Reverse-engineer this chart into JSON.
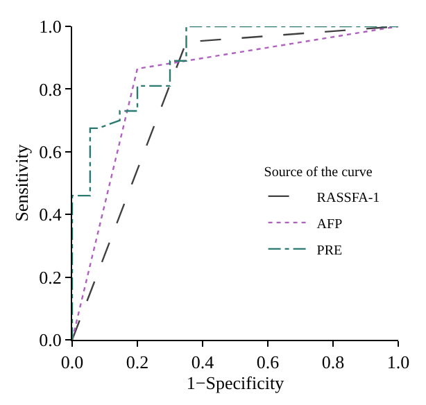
{
  "chart_data": {
    "type": "line",
    "xlabel": "1−Specificity",
    "ylabel": "Sensitivity",
    "legend_title": "Source of the curve",
    "legend": "right",
    "marker": "none",
    "xlim": [
      0,
      1
    ],
    "ylim": [
      0,
      1
    ],
    "xticks": [
      {
        "value": 0,
        "label": "0.0"
      },
      0.2,
      0.4,
      0.6,
      0.8,
      {
        "value": 1,
        "label": "1.0"
      }
    ],
    "yticks": [
      {
        "value": 0,
        "label": "0.0"
      },
      0.2,
      0.4,
      0.6,
      0.8,
      {
        "value": 1,
        "label": "1.0"
      }
    ],
    "series": [
      {
        "name": "RASSFA-1",
        "color": "#404040",
        "line_style": "longdash",
        "x": [
          0,
          0.35,
          1
        ],
        "values": [
          0,
          0.95,
          1
        ]
      },
      {
        "name": "AFP",
        "color": "#b060c0",
        "line_style": "dotted",
        "x": [
          0,
          0.2,
          0.35,
          1
        ],
        "values": [
          0,
          0.865,
          0.89,
          1
        ]
      },
      {
        "name": "PRE",
        "color": "#2a7a70",
        "line_style": "dashdot",
        "x": [
          0,
          0,
          0.055,
          0.055,
          0.08,
          0.146,
          0.146,
          0.2,
          0.2,
          0.3,
          0.3,
          0.35,
          0.35,
          1
        ],
        "values": [
          0,
          0.46,
          0.46,
          0.675,
          0.675,
          0.7,
          0.73,
          0.73,
          0.81,
          0.81,
          0.89,
          0.89,
          1,
          1
        ]
      }
    ]
  }
}
